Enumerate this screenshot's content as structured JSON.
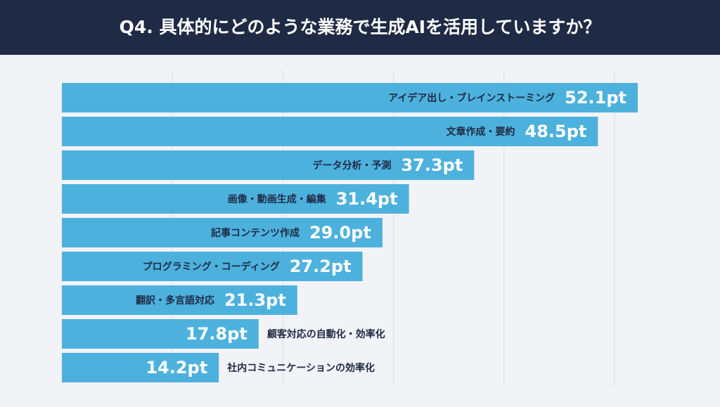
{
  "chart_data": {
    "type": "hbar",
    "title": "Q4. 具体的にどのような業務で生成AIを活用していますか？",
    "categories": [
      "アイデア出し・ブレインストーミング",
      "文章作成・要約",
      "データ分析・予測",
      "画像・動画生成・編集",
      "記事コンテンツ作成",
      "プログラミング・コーディング",
      "翻訳・多言語対応",
      "顧客対応の自動化・効率化",
      "社内コミュニケーションの効率化"
    ],
    "values": [
      52.1,
      48.5,
      37.3,
      31.4,
      29.0,
      27.2,
      21.3,
      17.8,
      14.2
    ],
    "value_labels": [
      "52.1pt",
      "48.5pt",
      "37.3pt",
      "31.4pt",
      "29.0pt",
      "27.2pt",
      "21.3pt",
      "17.8pt",
      "14.2pt"
    ],
    "color": "#4db1dd",
    "xlim": [
      0,
      55
    ],
    "xticks": [
      10,
      20,
      30,
      40,
      50
    ],
    "grid": true
  }
}
